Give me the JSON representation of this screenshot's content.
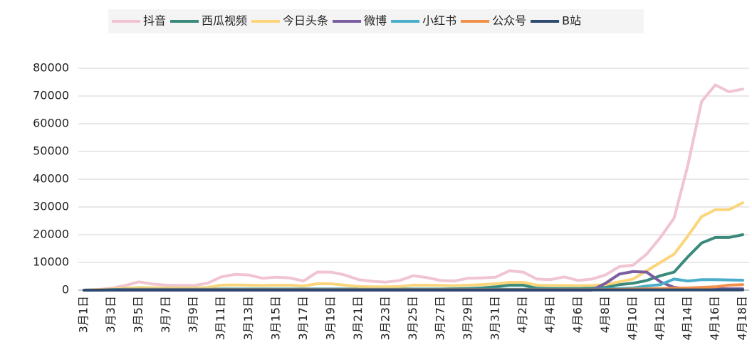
{
  "chart_data": {
    "type": "line",
    "categories": [
      "3月1日",
      null,
      "3月3日",
      null,
      "3月5日",
      null,
      "3月7日",
      null,
      "3月9日",
      null,
      "3月11日",
      null,
      "3月13日",
      null,
      "3月15日",
      null,
      "3月17日",
      null,
      "3月19日",
      null,
      "3月21日",
      null,
      "3月23日",
      null,
      "3月25日",
      null,
      "3月27日",
      null,
      "3月29日",
      null,
      "3月31日",
      null,
      "4月2日",
      null,
      "4月4日",
      null,
      "4月6日",
      null,
      "4月8日",
      null,
      "4月10日",
      null,
      "4月12日",
      null,
      "4月14日",
      null,
      "4月16日",
      null,
      "4月18日"
    ],
    "series": [
      {
        "name": "抖音",
        "color": "#f0c4d0",
        "values": [
          0,
          200,
          700,
          1700,
          3000,
          2200,
          1800,
          1700,
          1700,
          2500,
          4800,
          5700,
          5500,
          4300,
          4700,
          4400,
          3300,
          6500,
          6500,
          5500,
          3800,
          3200,
          2900,
          3500,
          5200,
          4500,
          3500,
          3300,
          4300,
          4400,
          4700,
          7000,
          6500,
          4000,
          3800,
          4800,
          3500,
          4000,
          5500,
          8500,
          9000,
          13000,
          19000,
          26000,
          45000,
          68000,
          74000,
          71500,
          72500
        ]
      },
      {
        "name": "西瓜视频",
        "color": "#3a8a7c",
        "values": [
          0,
          100,
          200,
          300,
          300,
          300,
          300,
          300,
          300,
          300,
          400,
          400,
          400,
          400,
          400,
          400,
          400,
          400,
          400,
          400,
          400,
          400,
          400,
          400,
          400,
          400,
          400,
          500,
          600,
          800,
          1200,
          1800,
          1800,
          700,
          600,
          600,
          600,
          700,
          1000,
          2000,
          2500,
          3500,
          5200,
          6500,
          12000,
          17000,
          19000,
          19000,
          20000
        ]
      },
      {
        "name": "今日头条",
        "color": "#fcd57a",
        "values": [
          0,
          200,
          400,
          700,
          1000,
          900,
          800,
          800,
          800,
          1000,
          1800,
          1900,
          1800,
          1700,
          1800,
          1800,
          1500,
          2300,
          2300,
          1800,
          1300,
          1200,
          1200,
          1300,
          1800,
          1800,
          1700,
          1600,
          1800,
          2000,
          2300,
          2800,
          2800,
          1800,
          1700,
          1700,
          1600,
          1700,
          2000,
          3000,
          4000,
          7000,
          10000,
          13000,
          19500,
          26500,
          29000,
          29000,
          31500
        ]
      },
      {
        "name": "微博",
        "color": "#7a5ea0",
        "values": [
          0,
          0,
          0,
          0,
          0,
          0,
          0,
          0,
          0,
          0,
          0,
          0,
          0,
          0,
          0,
          0,
          0,
          0,
          0,
          0,
          0,
          0,
          0,
          0,
          0,
          0,
          0,
          0,
          0,
          0,
          0,
          0,
          0,
          0,
          0,
          0,
          0,
          0,
          2500,
          5800,
          6700,
          6500,
          3000,
          1000,
          500,
          500,
          500,
          500,
          500
        ]
      },
      {
        "name": "小红书",
        "color": "#4aaecb",
        "values": [
          0,
          100,
          200,
          300,
          300,
          300,
          300,
          300,
          300,
          300,
          300,
          300,
          300,
          300,
          300,
          300,
          300,
          300,
          300,
          300,
          300,
          300,
          300,
          300,
          300,
          300,
          300,
          300,
          300,
          300,
          300,
          300,
          300,
          300,
          300,
          300,
          300,
          300,
          400,
          600,
          800,
          1500,
          2000,
          4000,
          3300,
          3800,
          3800,
          3700,
          3600
        ]
      },
      {
        "name": "公众号",
        "color": "#f0904a",
        "values": [
          0,
          100,
          100,
          200,
          200,
          200,
          200,
          200,
          200,
          200,
          200,
          200,
          200,
          200,
          200,
          200,
          200,
          200,
          200,
          200,
          200,
          200,
          200,
          200,
          200,
          200,
          200,
          200,
          200,
          200,
          200,
          200,
          200,
          200,
          200,
          200,
          200,
          200,
          200,
          300,
          400,
          500,
          600,
          700,
          800,
          1000,
          1200,
          1800,
          2000
        ]
      },
      {
        "name": "B站",
        "color": "#2d4a70",
        "values": [
          0,
          0,
          100,
          100,
          100,
          100,
          100,
          100,
          100,
          100,
          100,
          100,
          100,
          100,
          100,
          100,
          100,
          100,
          100,
          100,
          100,
          100,
          100,
          100,
          100,
          100,
          100,
          100,
          100,
          100,
          100,
          100,
          100,
          100,
          100,
          100,
          100,
          100,
          100,
          100,
          100,
          100,
          100,
          100,
          100,
          100,
          100,
          100,
          100
        ]
      }
    ],
    "ylim": [
      0,
      80000
    ],
    "yticks": [
      0,
      10000,
      20000,
      30000,
      40000,
      50000,
      60000,
      70000,
      80000
    ],
    "grid": true
  }
}
